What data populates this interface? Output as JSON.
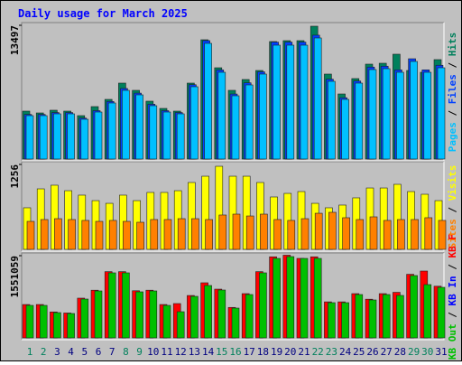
{
  "title": "Daily usage for March 2025",
  "legend_separator": " / ",
  "chart_data": [
    {
      "type": "bar",
      "series": [
        {
          "name": "Hits",
          "color": "#00805c",
          "values": [
            4834,
            4651,
            4925,
            4834,
            4378,
            5290,
            6019,
            7661,
            6931,
            5837,
            5107,
            4834,
            7661,
            12038,
            9211,
            6931,
            8025,
            8937,
            11856,
            11947,
            11947,
            13406,
            8573,
            6566,
            8117,
            9576,
            9667,
            10579,
            8937,
            8755,
            10032
          ]
        },
        {
          "name": "Files",
          "color": "#0040ff",
          "values": [
            4500,
            4500,
            4690,
            4690,
            4130,
            4880,
            5810,
            7120,
            6650,
            5530,
            4880,
            4690,
            7500,
            11950,
            8990,
            6560,
            7690,
            8800,
            11800,
            11800,
            11800,
            12500,
            8060,
            6190,
            7870,
            9280,
            9370,
            9000,
            10120,
            9000,
            9460
          ]
        },
        {
          "name": "Pages",
          "color": "#00c0ff",
          "values": [
            4378,
            4378,
            4560,
            4560,
            4013,
            4742,
            5654,
            6931,
            6475,
            5381,
            4742,
            4560,
            7296,
            11674,
            8755,
            6384,
            7478,
            8573,
            11491,
            11491,
            11491,
            12221,
            7843,
            6019,
            7661,
            9029,
            9120,
            8755,
            9850,
            8755,
            9211
          ]
        }
      ],
      "ylim": [
        0,
        13497
      ],
      "yticks": [
        13497
      ]
    },
    {
      "type": "bar",
      "series": [
        {
          "name": "Visits",
          "color": "#ffff00",
          "values": [
            615,
            895,
            949,
            868,
            802,
            721,
            681,
            802,
            721,
            842,
            842,
            868,
            989,
            1082,
            1229,
            1082,
            1082,
            989,
            775,
            828,
            855,
            681,
            615,
            655,
            762,
            908,
            908,
            962,
            855,
            815,
            721
          ]
        },
        {
          "name": "Sites",
          "color": "#ff8000",
          "values": [
            414,
            441,
            454,
            441,
            428,
            414,
            428,
            414,
            401,
            441,
            441,
            454,
            454,
            441,
            508,
            521,
            494,
            521,
            441,
            428,
            454,
            534,
            548,
            468,
            441,
            481,
            428,
            441,
            441,
            468,
            428
          ]
        }
      ],
      "ylim": [
        0,
        1256
      ],
      "yticks": [
        1256
      ]
    },
    {
      "type": "bar",
      "categories": [
        "1",
        "2",
        "3",
        "4",
        "5",
        "6",
        "7",
        "8",
        "9",
        "10",
        "11",
        "12",
        "13",
        "14",
        "15",
        "16",
        "17",
        "18",
        "19",
        "20",
        "21",
        "22",
        "23",
        "24",
        "25",
        "26",
        "27",
        "28",
        "29",
        "30",
        "31"
      ],
      "category_colors": [
        "#00805c",
        "#00805c",
        "#000080",
        "#000080",
        "#000080",
        "#000080",
        "#000080",
        "#00805c",
        "#00805c",
        "#000080",
        "#000080",
        "#000080",
        "#000080",
        "#000080",
        "#00805c",
        "#00805c",
        "#000080",
        "#000080",
        "#000080",
        "#000080",
        "#000080",
        "#00805c",
        "#00805c",
        "#000080",
        "#000080",
        "#000080",
        "#000080",
        "#000080",
        "#00805c",
        "#00805c",
        "#000080"
      ],
      "series": [
        {
          "name": "KB F",
          "color": "#ff0000",
          "values": [
            630000,
            630000,
            490000,
            470000,
            750000,
            900000,
            1250000,
            1250000,
            890000,
            900000,
            630000,
            647710,
            800000,
            1039745,
            920000,
            575000,
            835000,
            1250000,
            1530000,
            1560000,
            1499960,
            1530000,
            680000,
            680000,
            835000,
            730000,
            835000,
            860000,
            1200000,
            1261330,
            975000
          ]
        },
        {
          "name": "KB In",
          "color": "#0000ff",
          "values": [
            0,
            0,
            0,
            0,
            0,
            0,
            0,
            0,
            0,
            0,
            0,
            0,
            0,
            0,
            0,
            0,
            0,
            0,
            0,
            0,
            0,
            0,
            0,
            0,
            0,
            0,
            0,
            0,
            0,
            0,
            0
          ]
        },
        {
          "name": "KB Out",
          "color": "#00c000",
          "values": [
            613620,
            613620,
            477260,
            460215,
            732935,
            886340,
            1227240,
            1227240,
            869295,
            886340,
            613620,
            494305,
            784070,
            988610,
            903385,
            562485,
            818160,
            1227240,
            1499960,
            1534050,
            1499960,
            1499960,
            664755,
            664755,
            818160,
            715890,
            818160,
            801115,
            1176105,
            1005655,
            954520
          ]
        }
      ],
      "ylim": [
        0,
        1551059
      ],
      "yticks": [
        1551059
      ]
    }
  ]
}
